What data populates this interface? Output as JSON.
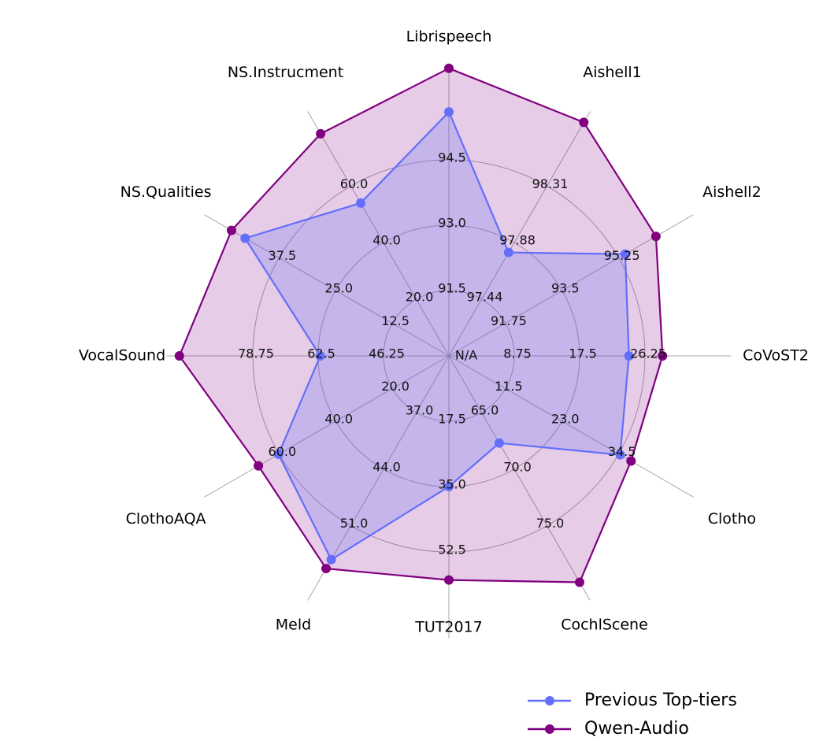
{
  "chart_data": {
    "type": "radar",
    "axes": [
      "Librispeech",
      "Aishell1",
      "Aishell2",
      "CoVoST2",
      "Clotho",
      "CochlScene",
      "TUT2017",
      "Meld",
      "ClothoAQA",
      "VocalSound",
      "NS.Qualities",
      "NS.Instrucment"
    ],
    "center_label": "N/A",
    "ring_labels": [
      [
        "91.5",
        "93.0",
        "94.5"
      ],
      [
        "97.44",
        "97.88",
        "98.31"
      ],
      [
        "91.75",
        "93.5",
        "95.25"
      ],
      [
        "8.75",
        "17.5",
        "26.25"
      ],
      [
        "11.5",
        "23.0",
        "34.5"
      ],
      [
        "65.0",
        "70.0",
        "75.0"
      ],
      [
        "17.5",
        "35.0",
        "52.5"
      ],
      [
        "37.0",
        "44.0",
        "51.0"
      ],
      [
        "20.0",
        "40.0",
        "60.0"
      ],
      [
        "46.25",
        "62.5",
        "78.75"
      ],
      [
        "12.5",
        "25.0",
        "37.5"
      ],
      [
        "20.0",
        "40.0",
        "60.0"
      ]
    ],
    "series": [
      {
        "name": "Previous Top-tiers",
        "color": "#636EFA",
        "values": [
          95.6,
          97.8,
          95.45,
          24.1,
          34.8,
          67.7,
          35.0,
          55.2,
          60.2,
          62.0,
          45.0,
          54.0
        ]
      },
      {
        "name": "Qwen-Audio",
        "color": "#800080",
        "values": [
          96.6,
          98.8,
          96.4,
          28.6,
          37.0,
          80.0,
          60.0,
          56.3,
          67.3,
          97.0,
          48.0,
          78.5
        ]
      }
    ],
    "grid": true,
    "legend_position": "bottom-right"
  }
}
